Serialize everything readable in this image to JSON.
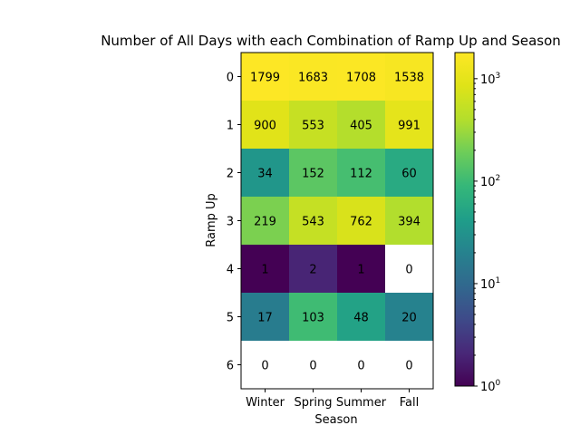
{
  "chart_data": {
    "type": "heatmap",
    "title": "Number of All Days with each Combination of Ramp Up and Season",
    "xlabel": "Season",
    "ylabel": "Ramp Up",
    "x_categories": [
      "Winter",
      "Spring",
      "Summer",
      "Fall"
    ],
    "y_categories": [
      "0",
      "1",
      "2",
      "3",
      "4",
      "5",
      "6"
    ],
    "values": [
      [
        1799,
        1683,
        1708,
        1538
      ],
      [
        900,
        553,
        405,
        991
      ],
      [
        34,
        152,
        112,
        60
      ],
      [
        219,
        543,
        762,
        394
      ],
      [
        1,
        2,
        1,
        0
      ],
      [
        17,
        103,
        48,
        20
      ],
      [
        0,
        0,
        0,
        0
      ]
    ],
    "zero_cells_blank": true,
    "color_scale": "log",
    "colormap": "viridis",
    "colorbar_range": [
      1,
      1799
    ],
    "colorbar": {
      "ticks": [
        {
          "value": 1,
          "base": "10",
          "exp": "0"
        },
        {
          "value": 10,
          "base": "10",
          "exp": "1"
        },
        {
          "value": 100,
          "base": "10",
          "exp": "2"
        },
        {
          "value": 1000,
          "base": "10",
          "exp": "3"
        }
      ]
    }
  }
}
